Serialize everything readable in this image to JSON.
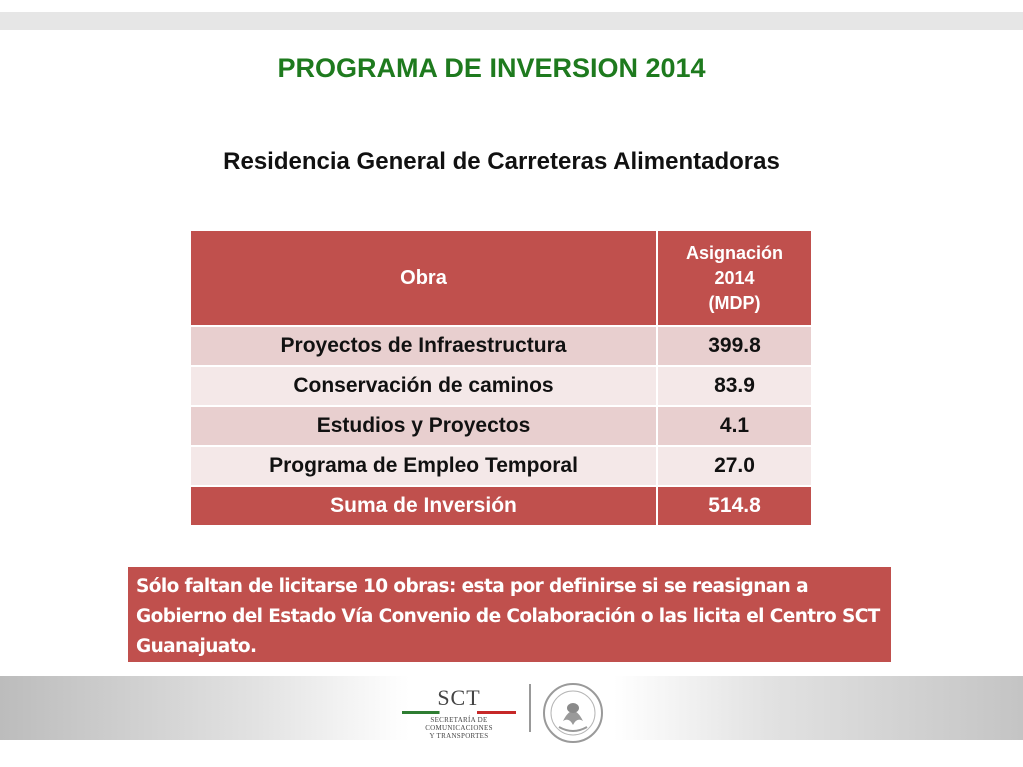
{
  "title": "PROGRAMA DE INVERSION 2014",
  "subtitle": "Residencia General de Carreteras Alimentadoras",
  "table": {
    "header_obra": "Obra",
    "header_asig_line1": "Asignación",
    "header_asig_line2": "2014",
    "header_asig_line3": "(MDP)",
    "rows": [
      {
        "obra": "Proyectos de Infraestructura",
        "monto": "399.8"
      },
      {
        "obra": "Conservación de caminos",
        "monto": "83.9"
      },
      {
        "obra": "Estudios y Proyectos",
        "monto": "4.1"
      },
      {
        "obra": "Programa de Empleo Temporal",
        "monto": "27.0"
      }
    ],
    "total_label": "Suma de Inversión",
    "total_value": "514.8"
  },
  "note": "Sólo faltan de licitarse 10 obras:  esta por definirse si se reasignan a Gobierno del Estado Vía Convenio de Colaboración o las licita el Centro SCT Guanajuato.",
  "footer": {
    "logo_text": "SCT",
    "logo_line1": "SECRETARÍA DE",
    "logo_line2": "COMUNICACIONES",
    "logo_line3": "Y TRANSPORTES",
    "seal_icon": "mexican-coat-of-arms-seal"
  },
  "colors": {
    "title_green": "#1e7a1e",
    "table_header": "#c0504d",
    "row_dark": "#e8cfcf",
    "row_light": "#f4e8e8"
  }
}
